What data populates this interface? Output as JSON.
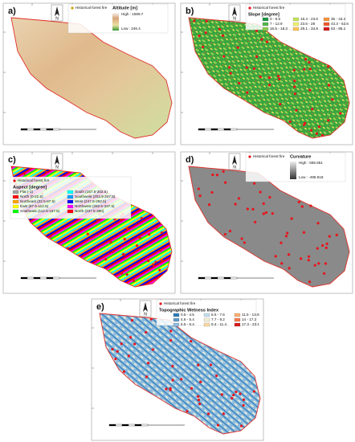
{
  "panels": [
    {
      "label": "a)",
      "fire": "Historical forest fire",
      "north": "N",
      "title": "Altitude [m]",
      "ramp": [
        "High : 1589.7",
        "Low : 246.4"
      ]
    },
    {
      "label": "b)",
      "fire": "Historical forest fire",
      "north": "N",
      "title": "Slope [degree]",
      "classes": [
        {
          "label": "0 - 6.6",
          "color": "#1a9641"
        },
        {
          "label": "7 - 12.9",
          "color": "#52b447"
        },
        {
          "label": "16.5 - 18.3",
          "color": "#8ccc4e"
        },
        {
          "label": "18.4 - 23.6",
          "color": "#c4e35a"
        },
        {
          "label": "23.6 - 28",
          "color": "#f2f06a"
        },
        {
          "label": "29.1 - 34.9",
          "color": "#fdc44f"
        },
        {
          "label": "35 - 43.2",
          "color": "#f99439"
        },
        {
          "label": "43.3 - 52.6",
          "color": "#ee5a2a"
        },
        {
          "label": "53 - 86.1",
          "color": "#d7191c"
        }
      ]
    },
    {
      "label": "c)",
      "fire": "Historical forest fire",
      "north": "N",
      "title": "Aspect [degree]",
      "classes": [
        {
          "label": "Flat (-1)",
          "color": "#a0a0a0"
        },
        {
          "label": "North (0-22.5)",
          "color": "#ff0000"
        },
        {
          "label": "Northeast (22.5-67.5)",
          "color": "#ffa500"
        },
        {
          "label": "East (67.5-112.5)",
          "color": "#ffff00"
        },
        {
          "label": "Southeast (112.5-157.5)",
          "color": "#00ff00"
        },
        {
          "label": "South (157.5-202.5)",
          "color": "#00ffff"
        },
        {
          "label": "Southwest (202.5-247.5)",
          "color": "#00a2ff"
        },
        {
          "label": "West (247.5-292.5)",
          "color": "#0000ff"
        },
        {
          "label": "Northwest (292.5-337.5)",
          "color": "#ff00ff"
        },
        {
          "label": "North (337.5-360)",
          "color": "#ff0000"
        }
      ]
    },
    {
      "label": "d)",
      "fire": "Historical forest fire",
      "north": "N",
      "title": "Curvature",
      "ramp": [
        "High : 555.551",
        "Low : -495.618"
      ]
    },
    {
      "label": "e)",
      "fire": "Historical forest fire",
      "north": "N",
      "title": "Topographic Wetness Index",
      "classes": [
        {
          "label": "0.5 - 4.5",
          "color": "#2c7bb6"
        },
        {
          "label": "4.6 - 5.4",
          "color": "#5e9ccb"
        },
        {
          "label": "5.5 - 6.4",
          "color": "#90bddf"
        },
        {
          "label": "6.5 - 7.6",
          "color": "#c2def0"
        },
        {
          "label": "7.7 - 9.2",
          "color": "#f4f0d6"
        },
        {
          "label": "9.4 - 11.4",
          "color": "#fbd9a3"
        },
        {
          "label": "11.5 - 13.8",
          "color": "#fdb071"
        },
        {
          "label": "14 - 17.2",
          "color": "#f67a4c"
        },
        {
          "label": "17.3 - 23.1",
          "color": "#d7191c"
        }
      ]
    }
  ]
}
